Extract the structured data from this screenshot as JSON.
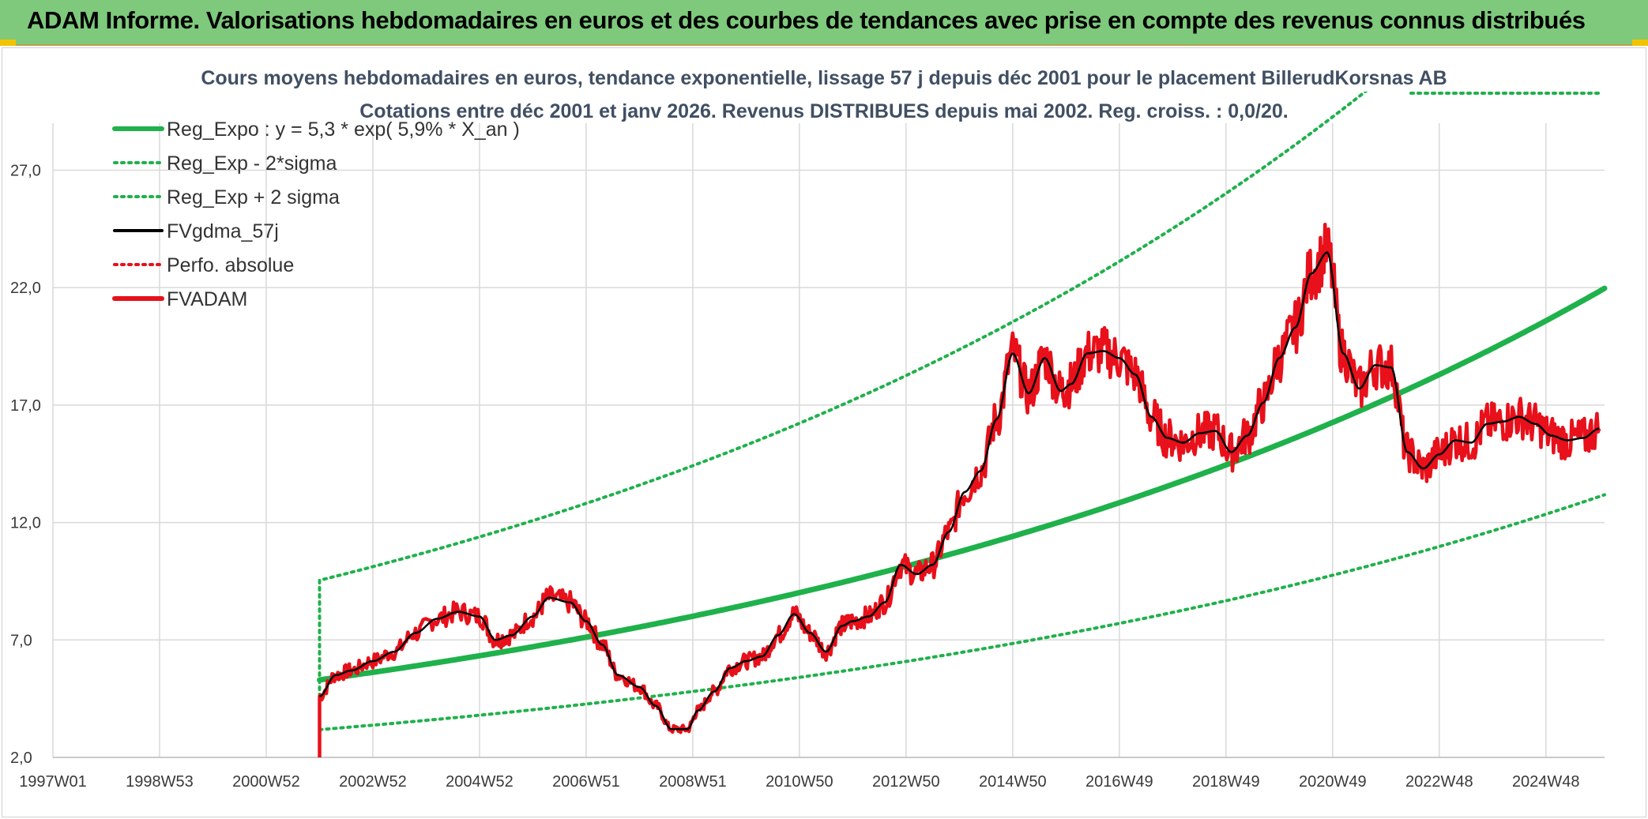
{
  "header": {
    "title": "ADAM Informe. Valorisations hebdomadaires en euros et des courbes de tendances avec prise en compte des revenus connus distribués"
  },
  "colors": {
    "banner_bg": "#7ec97c",
    "reg_expo": "#1fb14b",
    "sigma_band": "#1fb14b",
    "fvgdma": "#000000",
    "perfo": "#e8101a",
    "fvadam": "#e8101a"
  },
  "chart_data": {
    "type": "line",
    "title": "Cours moyens hebdomadaires en euros, tendance exponentielle, lissage 57 j depuis déc 2001 pour le placement BillerudKorsnas AB",
    "subtitle": "Cotations entre déc 2001 et janv 2026. Revenus DISTRIBUES depuis mai 2002. Reg. croiss. : 0,0/20.",
    "xlabel": "",
    "ylabel": "",
    "x_range": [
      1997.0,
      2026.1
    ],
    "ylim": [
      2.0,
      29.0
    ],
    "y_ticks": [
      "2,0",
      "7,0",
      "12,0",
      "17,0",
      "22,0",
      "27,0"
    ],
    "y_tick_values": [
      2.0,
      7.0,
      12.0,
      17.0,
      22.0,
      27.0
    ],
    "x_tick_labels": [
      "1997W01",
      "1998W53",
      "2000W52",
      "2002W52",
      "2004W52",
      "2006W51",
      "2008W51",
      "2010W50",
      "2012W50",
      "2014W50",
      "2016W49",
      "2018W49",
      "2020W49",
      "2022W48",
      "2024W48"
    ],
    "x_tick_values": [
      1997.0,
      1999.0,
      2001.0,
      2003.0,
      2005.0,
      2007.0,
      2009.0,
      2011.0,
      2013.0,
      2015.0,
      2017.0,
      2019.0,
      2021.0,
      2023.0,
      2025.0
    ],
    "legend": [
      {
        "key": "reg_expo",
        "label": "Reg_Expo : y = 5,3 * exp( 5,9% *  X_an )",
        "style": "solid-thick",
        "color": "#1fb14b"
      },
      {
        "key": "reg_minus",
        "label": "Reg_Exp - 2*sigma",
        "style": "dotted",
        "color": "#1fb14b"
      },
      {
        "key": "reg_plus",
        "label": "Reg_Exp + 2 sigma",
        "style": "dotted",
        "color": "#1fb14b"
      },
      {
        "key": "fvgdma",
        "label": "FVgdma_57j",
        "style": "solid",
        "color": "#000000"
      },
      {
        "key": "perfo",
        "label": "Perfo. absolue",
        "style": "dotted",
        "color": "#e8101a"
      },
      {
        "key": "fvadam",
        "label": "FVADAM",
        "style": "solid-thick",
        "color": "#e8101a"
      }
    ],
    "regression": {
      "a": 5.3,
      "growth": 0.059,
      "start": 2002.0,
      "end": 2026.1,
      "sigma_factor_upper": 1.8,
      "sigma_factor_lower": 0.6
    },
    "series": [
      {
        "name": "FVADAM",
        "x": [
          2002.0,
          2002.3,
          2002.6,
          2003.0,
          2003.4,
          2003.8,
          2004.2,
          2004.6,
          2005.0,
          2005.3,
          2005.6,
          2006.0,
          2006.3,
          2006.7,
          2007.0,
          2007.3,
          2007.6,
          2008.0,
          2008.3,
          2008.6,
          2008.9,
          2009.1,
          2009.4,
          2009.7,
          2010.0,
          2010.3,
          2010.6,
          2010.9,
          2011.2,
          2011.5,
          2011.8,
          2012.0,
          2012.3,
          2012.6,
          2012.9,
          2013.2,
          2013.5,
          2013.8,
          2014.1,
          2014.4,
          2014.7,
          2015.0,
          2015.3,
          2015.6,
          2015.9,
          2016.1,
          2016.4,
          2016.7,
          2017.0,
          2017.3,
          2017.6,
          2017.9,
          2018.2,
          2018.5,
          2018.8,
          2019.1,
          2019.4,
          2019.7,
          2020.0,
          2020.3,
          2020.6,
          2020.9,
          2021.2,
          2021.5,
          2021.8,
          2022.1,
          2022.4,
          2022.7,
          2023.0,
          2023.3,
          2023.6,
          2023.9,
          2024.2,
          2024.5,
          2024.8,
          2025.1,
          2025.4,
          2025.7,
          2026.0
        ],
        "values": [
          4.6,
          5.5,
          5.7,
          6.1,
          6.5,
          7.3,
          7.9,
          8.2,
          8.0,
          7.0,
          7.2,
          8.0,
          8.8,
          8.6,
          7.8,
          6.8,
          5.5,
          5.0,
          4.2,
          3.2,
          3.2,
          4.0,
          4.8,
          5.8,
          6.1,
          6.3,
          7.2,
          8.1,
          7.3,
          6.5,
          7.6,
          7.8,
          8.0,
          8.6,
          10.2,
          9.8,
          10.2,
          11.6,
          13.3,
          14.2,
          16.4,
          19.2,
          17.5,
          19.0,
          17.6,
          17.9,
          19.2,
          19.3,
          19.0,
          18.3,
          16.5,
          15.6,
          15.4,
          15.8,
          15.9,
          15.0,
          15.7,
          17.1,
          19.0,
          20.3,
          22.6,
          23.5,
          19.2,
          17.7,
          18.7,
          18.6,
          15.0,
          14.3,
          14.9,
          15.5,
          15.4,
          16.2,
          16.3,
          16.5,
          16.2,
          15.7,
          15.5,
          15.6,
          16.0
        ]
      }
    ]
  }
}
